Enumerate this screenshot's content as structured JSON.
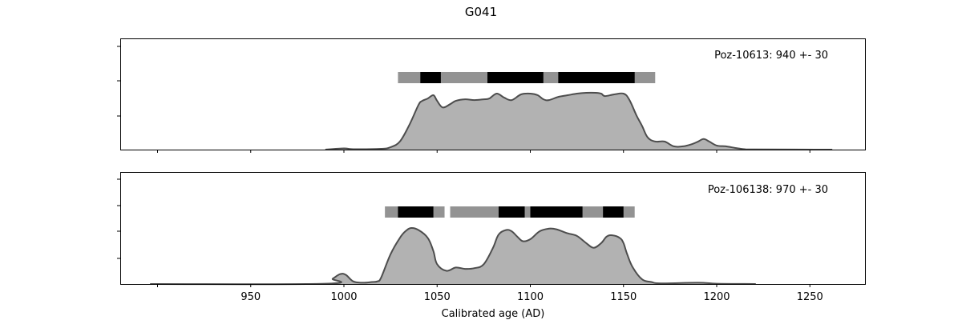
{
  "chart_data": {
    "type": "area",
    "title": "G041",
    "xlabel": "Calibrated age (AD)",
    "xlim": [
      880,
      1280
    ],
    "x_ticks": [
      950,
      1000,
      1050,
      1100,
      1150,
      1200,
      1250
    ],
    "colors": {
      "fill": "#b2b2b2",
      "line": "#4d4d4d",
      "range_light": "#939393",
      "range_dark": "#000000"
    },
    "panels": [
      {
        "annotation": "Poz-10613: 940 +- 30",
        "ranges_95": [
          [
            1029,
            1167
          ]
        ],
        "ranges_68": [
          [
            1041,
            1052
          ],
          [
            1077,
            1107
          ],
          [
            1115,
            1156
          ]
        ],
        "density": [
          [
            990,
            0
          ],
          [
            1000,
            0.015
          ],
          [
            1005,
            0.005
          ],
          [
            1020,
            0.01
          ],
          [
            1025,
            0.03
          ],
          [
            1030,
            0.1
          ],
          [
            1035,
            0.3
          ],
          [
            1040,
            0.55
          ],
          [
            1042,
            0.6
          ],
          [
            1045,
            0.63
          ],
          [
            1048,
            0.67
          ],
          [
            1050,
            0.6
          ],
          [
            1053,
            0.52
          ],
          [
            1057,
            0.56
          ],
          [
            1060,
            0.6
          ],
          [
            1065,
            0.62
          ],
          [
            1070,
            0.61
          ],
          [
            1075,
            0.62
          ],
          [
            1078,
            0.63
          ],
          [
            1082,
            0.69
          ],
          [
            1086,
            0.64
          ],
          [
            1090,
            0.61
          ],
          [
            1095,
            0.68
          ],
          [
            1100,
            0.69
          ],
          [
            1104,
            0.67
          ],
          [
            1107,
            0.62
          ],
          [
            1110,
            0.61
          ],
          [
            1115,
            0.65
          ],
          [
            1120,
            0.67
          ],
          [
            1125,
            0.69
          ],
          [
            1130,
            0.7
          ],
          [
            1135,
            0.7
          ],
          [
            1138,
            0.69
          ],
          [
            1140,
            0.66
          ],
          [
            1145,
            0.68
          ],
          [
            1150,
            0.69
          ],
          [
            1153,
            0.62
          ],
          [
            1157,
            0.42
          ],
          [
            1160,
            0.29
          ],
          [
            1163,
            0.15
          ],
          [
            1167,
            0.1
          ],
          [
            1172,
            0.1
          ],
          [
            1177,
            0.04
          ],
          [
            1182,
            0.04
          ],
          [
            1187,
            0.07
          ],
          [
            1190,
            0.1
          ],
          [
            1193,
            0.13
          ],
          [
            1196,
            0.1
          ],
          [
            1200,
            0.05
          ],
          [
            1205,
            0.04
          ],
          [
            1210,
            0.02
          ],
          [
            1215,
            0.005
          ],
          [
            1220,
            0.002
          ],
          [
            1262,
            0
          ]
        ]
      },
      {
        "annotation": "Poz-106138: 970 +- 30",
        "ranges_95": [
          [
            1022,
            1054
          ],
          [
            1057,
            1156
          ]
        ],
        "ranges_68": [
          [
            1029,
            1048
          ],
          [
            1083,
            1097
          ],
          [
            1100,
            1128
          ],
          [
            1139,
            1150
          ]
        ],
        "density": [
          [
            896,
            0
          ],
          [
            990,
            0.005
          ],
          [
            994,
            0.08
          ],
          [
            998,
            0.15
          ],
          [
            1001,
            0.14
          ],
          [
            1005,
            0.04
          ],
          [
            1010,
            0.02
          ],
          [
            1015,
            0.03
          ],
          [
            1018,
            0.04
          ],
          [
            1020,
            0.1
          ],
          [
            1025,
            0.45
          ],
          [
            1030,
            0.7
          ],
          [
            1033,
            0.8
          ],
          [
            1036,
            0.85
          ],
          [
            1040,
            0.82
          ],
          [
            1045,
            0.7
          ],
          [
            1048,
            0.5
          ],
          [
            1050,
            0.3
          ],
          [
            1055,
            0.2
          ],
          [
            1060,
            0.25
          ],
          [
            1065,
            0.23
          ],
          [
            1070,
            0.24
          ],
          [
            1075,
            0.3
          ],
          [
            1080,
            0.55
          ],
          [
            1083,
            0.75
          ],
          [
            1087,
            0.82
          ],
          [
            1090,
            0.8
          ],
          [
            1093,
            0.72
          ],
          [
            1096,
            0.65
          ],
          [
            1100,
            0.68
          ],
          [
            1105,
            0.8
          ],
          [
            1110,
            0.84
          ],
          [
            1114,
            0.83
          ],
          [
            1120,
            0.77
          ],
          [
            1125,
            0.73
          ],
          [
            1130,
            0.62
          ],
          [
            1134,
            0.55
          ],
          [
            1138,
            0.62
          ],
          [
            1141,
            0.72
          ],
          [
            1144,
            0.74
          ],
          [
            1148,
            0.7
          ],
          [
            1150,
            0.62
          ],
          [
            1152,
            0.45
          ],
          [
            1155,
            0.25
          ],
          [
            1160,
            0.07
          ],
          [
            1165,
            0.03
          ],
          [
            1170,
            0.01
          ],
          [
            1190,
            0.02
          ],
          [
            1200,
            0.005
          ],
          [
            1221,
            0
          ]
        ]
      }
    ]
  }
}
